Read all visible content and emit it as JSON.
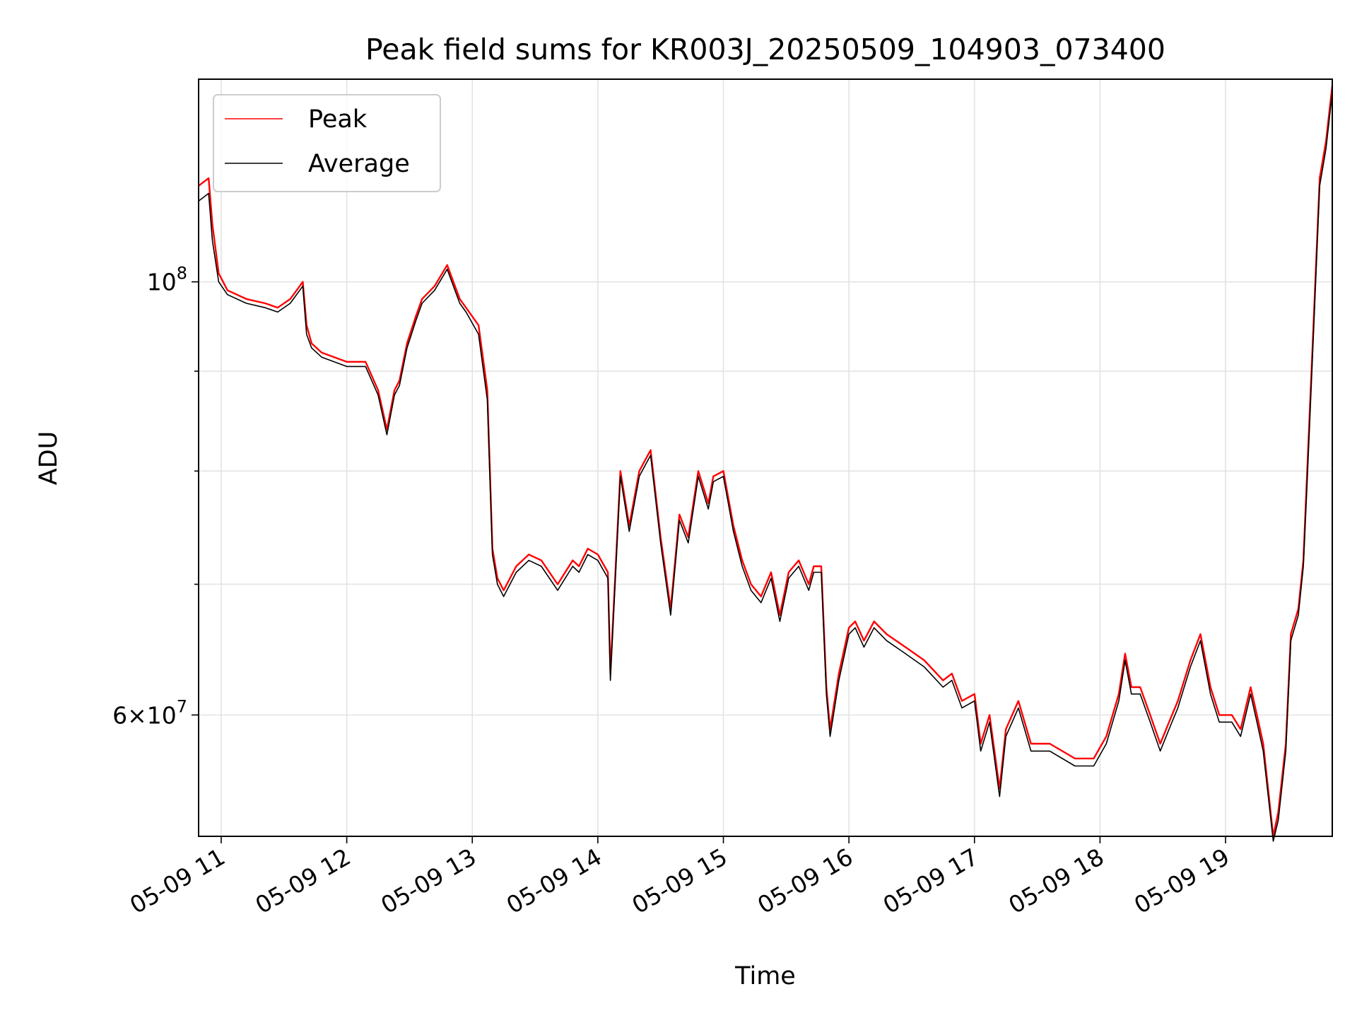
{
  "chart_data": {
    "type": "line",
    "title": "Peak field sums for KR003J_20250509_104903_073400",
    "xlabel": "Time",
    "ylabel": "ADU",
    "x_unit": "hours on 2025-05-09",
    "xlim": [
      10.82,
      19.85
    ],
    "ylim": [
      52000000,
      127000000
    ],
    "yscale": "log",
    "grid": true,
    "legend_position": "upper left",
    "x_ticks": [
      {
        "value": 11,
        "label": "05-09 11"
      },
      {
        "value": 12,
        "label": "05-09 12"
      },
      {
        "value": 13,
        "label": "05-09 13"
      },
      {
        "value": 14,
        "label": "05-09 14"
      },
      {
        "value": 15,
        "label": "05-09 15"
      },
      {
        "value": 16,
        "label": "05-09 16"
      },
      {
        "value": 17,
        "label": "05-09 17"
      },
      {
        "value": 18,
        "label": "05-09 18"
      },
      {
        "value": 19,
        "label": "05-09 19"
      }
    ],
    "y_major_ticks": [
      {
        "value": 100000000,
        "label_base": "10",
        "label_exp": "8"
      },
      {
        "value": 60000000,
        "label_base": "6×10",
        "label_exp": "7"
      }
    ],
    "y_minor_ticks": [
      70000000,
      80000000,
      90000000
    ],
    "x": [
      10.82,
      10.9,
      10.93,
      10.98,
      11.05,
      11.2,
      11.35,
      11.45,
      11.55,
      11.65,
      11.68,
      11.72,
      11.8,
      12.0,
      12.15,
      12.25,
      12.32,
      12.38,
      12.42,
      12.48,
      12.55,
      12.6,
      12.7,
      12.8,
      12.9,
      12.95,
      13.05,
      13.12,
      13.16,
      13.2,
      13.25,
      13.35,
      13.45,
      13.55,
      13.68,
      13.8,
      13.85,
      13.92,
      14.0,
      14.08,
      14.1,
      14.18,
      14.25,
      14.33,
      14.42,
      14.5,
      14.58,
      14.65,
      14.72,
      14.8,
      14.88,
      14.92,
      15.0,
      15.08,
      15.15,
      15.22,
      15.3,
      15.38,
      15.45,
      15.52,
      15.6,
      15.68,
      15.72,
      15.78,
      15.82,
      15.85,
      15.92,
      16.0,
      16.05,
      16.12,
      16.2,
      16.3,
      16.45,
      16.6,
      16.75,
      16.82,
      16.9,
      17.0,
      17.05,
      17.12,
      17.2,
      17.25,
      17.35,
      17.45,
      17.6,
      17.8,
      17.95,
      18.05,
      18.15,
      18.2,
      18.25,
      18.32,
      18.4,
      18.48,
      18.55,
      18.62,
      18.72,
      18.8,
      18.88,
      18.95,
      19.05,
      19.12,
      19.2,
      19.25,
      19.3,
      19.38,
      19.42,
      19.48,
      19.52,
      19.58,
      19.62,
      19.65,
      19.7,
      19.75,
      19.8,
      19.85
    ],
    "series": [
      {
        "name": "Peak",
        "color": "#ff0000",
        "values": [
          112000000,
          113000000,
          107000000,
          101000000,
          99000000,
          98000000,
          97500000,
          97000000,
          98000000,
          100000000,
          95000000,
          93000000,
          92000000,
          91000000,
          91000000,
          88000000,
          84000000,
          88000000,
          89000000,
          93000000,
          96000000,
          98000000,
          99500000,
          102000000,
          98000000,
          97000000,
          95000000,
          88000000,
          73000000,
          70500000,
          69500000,
          71500000,
          72500000,
          72000000,
          70000000,
          72000000,
          71500000,
          73000000,
          72500000,
          71000000,
          63000000,
          80000000,
          75000000,
          80000000,
          82000000,
          74000000,
          68000000,
          76000000,
          74000000,
          80000000,
          77000000,
          79500000,
          80000000,
          75000000,
          72000000,
          70000000,
          69000000,
          71000000,
          67500000,
          71000000,
          72000000,
          70000000,
          71500000,
          71500000,
          62000000,
          59000000,
          63000000,
          66500000,
          67000000,
          65500000,
          67000000,
          66000000,
          65000000,
          64000000,
          62500000,
          63000000,
          61000000,
          61500000,
          58000000,
          60000000,
          55000000,
          59000000,
          61000000,
          58000000,
          58000000,
          57000000,
          57000000,
          58500000,
          61500000,
          64500000,
          62000000,
          62000000,
          60000000,
          58000000,
          59500000,
          61000000,
          64000000,
          66000000,
          62000000,
          60000000,
          60000000,
          59000000,
          62000000,
          60000000,
          58000000,
          52000000,
          53500000,
          58000000,
          66000000,
          68000000,
          72000000,
          80000000,
          95000000,
          113000000,
          118000000,
          126000000
        ]
      },
      {
        "name": "Average",
        "color": "#000000",
        "values": [
          110000000,
          111000000,
          105000000,
          100000000,
          98500000,
          97500000,
          97000000,
          96500000,
          97500000,
          99500000,
          94000000,
          92500000,
          91500000,
          90500000,
          90500000,
          87500000,
          83500000,
          87500000,
          88500000,
          92500000,
          95500000,
          97500000,
          99000000,
          101500000,
          97500000,
          96500000,
          94000000,
          87000000,
          72500000,
          70000000,
          69000000,
          71000000,
          72000000,
          71500000,
          69500000,
          71500000,
          71000000,
          72500000,
          72000000,
          70500000,
          62500000,
          79500000,
          74500000,
          79500000,
          81500000,
          73500000,
          67500000,
          75500000,
          73500000,
          79500000,
          76500000,
          79000000,
          79500000,
          74500000,
          71500000,
          69500000,
          68500000,
          70500000,
          67000000,
          70500000,
          71500000,
          69500000,
          71000000,
          71000000,
          61500000,
          58500000,
          62500000,
          66000000,
          66500000,
          65000000,
          66500000,
          65500000,
          64500000,
          63500000,
          62000000,
          62500000,
          60500000,
          61000000,
          57500000,
          59500000,
          54500000,
          58500000,
          60500000,
          57500000,
          57500000,
          56500000,
          56500000,
          58000000,
          61000000,
          64000000,
          61500000,
          61500000,
          59500000,
          57500000,
          59000000,
          60500000,
          63500000,
          65500000,
          61500000,
          59500000,
          59500000,
          58500000,
          61500000,
          59500000,
          57500000,
          51700000,
          53000000,
          57500000,
          65500000,
          67500000,
          71500000,
          79000000,
          94000000,
          112000000,
          117000000,
          125000000
        ]
      }
    ]
  }
}
